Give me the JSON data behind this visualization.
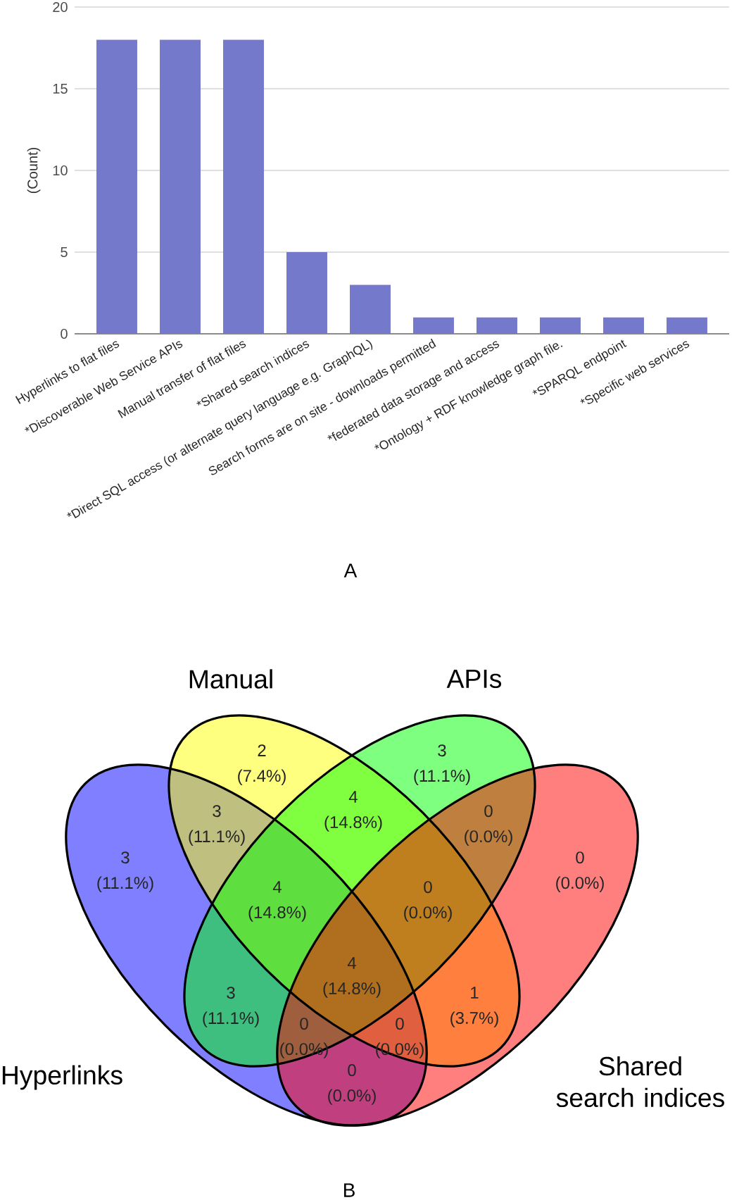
{
  "chart_data": [
    {
      "type": "bar",
      "title": "A",
      "ylabel": "(Count)",
      "categories": [
        "Hyperlinks to flat files",
        "*Discoverable Web Service APIs",
        "Manual transfer of flat files",
        "*Shared search indices",
        "*Direct SQL access (or alternate query language e.g. GraphQL)",
        "Search forms are on site - downloads permitted",
        "*federated data storage and access",
        "*Ontology + RDF knowledge graph file.",
        "*SPARQL endpoint",
        "*Specific web services"
      ],
      "values": [
        18,
        18,
        18,
        5,
        3,
        1,
        1,
        1,
        1,
        1
      ],
      "color": "#7579cc",
      "ylim": [
        0,
        20
      ],
      "yticks": [
        0,
        5,
        10,
        15,
        20
      ],
      "grid": "y"
    },
    {
      "type": "other",
      "title": "B",
      "categories": [
        "Hyperlinks",
        "Manual",
        "APIs",
        "Shared search indices"
      ],
      "colors": [
        "#0000ff",
        "#ffff00",
        "#00ff00",
        "#ff0000"
      ],
      "annotations": [
        "2 (7.4%)",
        "3 (11.1%)",
        "4 (14.8%)",
        "3 (11.1%)",
        "0 (0.0%)",
        "3 (11.1%)",
        "0 (0.0%)",
        "4 (14.8%)",
        "0 (0.0%)",
        "4 (14.8%)",
        "3 (11.1%)",
        "1 (3.7%)",
        "0 (0.0%)",
        "0 (0.0%)",
        "0 (0.0%)"
      ]
    }
  ]
}
